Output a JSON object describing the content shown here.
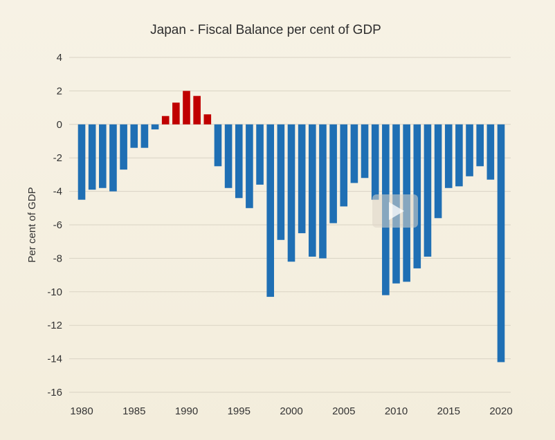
{
  "chart_data": {
    "type": "bar",
    "title": "Japan - Fiscal Balance per cent of GDP",
    "xlabel": "",
    "ylabel": "Per cent of GDP",
    "ylim": [
      -16,
      4
    ],
    "yticks": [
      4,
      2,
      0,
      -2,
      -4,
      -6,
      -8,
      -10,
      -12,
      -14,
      -16
    ],
    "xtick_labels": [
      "1980",
      "1985",
      "1990",
      "1995",
      "2000",
      "2005",
      "2010",
      "2015",
      "2020"
    ],
    "x": [
      1980,
      1981,
      1982,
      1983,
      1984,
      1985,
      1986,
      1987,
      1988,
      1989,
      1990,
      1991,
      1992,
      1993,
      1994,
      1995,
      1996,
      1997,
      1998,
      1999,
      2000,
      2001,
      2002,
      2003,
      2004,
      2005,
      2006,
      2007,
      2008,
      2009,
      2010,
      2011,
      2012,
      2013,
      2014,
      2015,
      2016,
      2017,
      2018,
      2019,
      2020
    ],
    "values": [
      -4.5,
      -3.9,
      -3.8,
      -4.0,
      -2.7,
      -1.4,
      -1.4,
      -0.3,
      0.5,
      1.3,
      2.0,
      1.7,
      0.6,
      -2.5,
      -3.8,
      -4.4,
      -5.0,
      -3.6,
      -10.3,
      -6.9,
      -8.2,
      -6.5,
      -7.9,
      -8.0,
      -5.9,
      -4.9,
      -3.5,
      -3.2,
      -4.5,
      -10.2,
      -9.5,
      -9.4,
      -8.6,
      -7.9,
      -5.6,
      -3.8,
      -3.7,
      -3.1,
      -2.5,
      -3.3,
      -14.2
    ],
    "colors": {
      "positive": "#c00000",
      "negative": "#1f6fb4"
    },
    "grid": true,
    "legend": "none"
  }
}
